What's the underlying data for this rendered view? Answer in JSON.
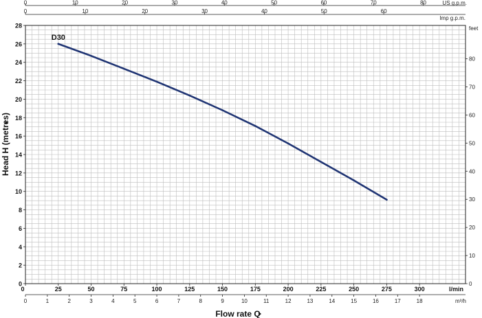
{
  "chart_data": {
    "type": "line",
    "title": "",
    "xlabel": "Flow rate Q",
    "ylabel": "Head H (metres)",
    "x_unit": "l/min",
    "xlim": [
      0,
      335
    ],
    "ylim": [
      0,
      28
    ],
    "x_ticks": [
      0,
      25,
      50,
      75,
      100,
      125,
      150,
      175,
      200,
      225,
      250,
      275,
      300
    ],
    "y_ticks": [
      0,
      2,
      4,
      6,
      8,
      10,
      12,
      14,
      16,
      18,
      20,
      22,
      24,
      26,
      28
    ],
    "grid": true,
    "series": [
      {
        "name": "D30",
        "color": "#1f3473",
        "x": [
          25,
          50,
          75,
          100,
          125,
          150,
          175,
          200,
          225,
          250,
          275
        ],
        "y": [
          26.0,
          24.7,
          23.3,
          21.9,
          20.4,
          18.8,
          17.1,
          15.2,
          13.2,
          11.2,
          9.1
        ]
      }
    ],
    "secondary_axes": {
      "us_gpm": {
        "unit": "US g.p.m.",
        "ticks": [
          0,
          10,
          20,
          30,
          40,
          50,
          60,
          70,
          80
        ]
      },
      "imp_gpm": {
        "unit": "Imp g.p.m.",
        "ticks": [
          0,
          10,
          20,
          30,
          40,
          50,
          60
        ]
      },
      "feet": {
        "unit": "feet",
        "ticks": [
          0,
          10,
          20,
          30,
          40,
          50,
          60,
          70,
          80
        ]
      },
      "m3h": {
        "unit": "m³/h",
        "ticks": [
          0,
          1,
          2,
          3,
          4,
          5,
          6,
          7,
          8,
          9,
          10,
          11,
          12,
          13,
          14,
          15,
          16,
          17,
          18
        ]
      }
    }
  }
}
